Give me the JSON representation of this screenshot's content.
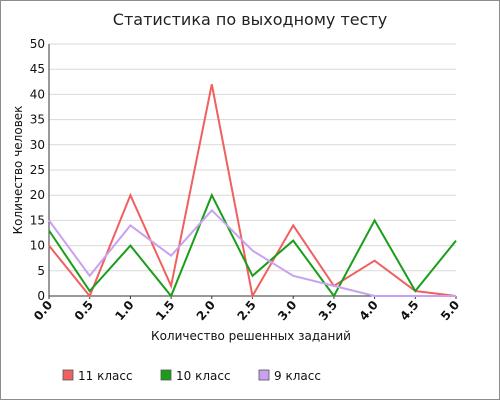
{
  "chart_data": {
    "type": "line",
    "title": "Статистика по выходному тесту",
    "xlabel": "Количество решенных заданий",
    "ylabel": "Количество человек",
    "x": [
      0.0,
      0.5,
      1.0,
      1.5,
      2.0,
      2.5,
      3.0,
      3.5,
      4.0,
      4.5,
      5.0
    ],
    "x_tick_labels": [
      "0.0",
      "0.5",
      "1.0",
      "1.5",
      "2.0",
      "2.5",
      "3.0",
      "3.5",
      "4.0",
      "4.5",
      "5.0"
    ],
    "y_tick_labels": [
      "0",
      "5",
      "10",
      "15",
      "20",
      "25",
      "30",
      "35",
      "40",
      "45",
      "50"
    ],
    "xlim": [
      0,
      5
    ],
    "ylim": [
      0,
      50
    ],
    "grid": "horizontal",
    "legend_position": "bottom",
    "series": [
      {
        "name": "11 класс",
        "color": "#f06060",
        "values": [
          10,
          0,
          20,
          2,
          42,
          0,
          14,
          2,
          7,
          1,
          0
        ]
      },
      {
        "name": "10 класс",
        "color": "#1a9e1a",
        "values": [
          13,
          1,
          10,
          0,
          20,
          4,
          11,
          0,
          15,
          1,
          11
        ]
      },
      {
        "name": "9 класс",
        "color": "#c8a2f0",
        "values": [
          15,
          4,
          14,
          8,
          17,
          9,
          4,
          2,
          0,
          0,
          0
        ]
      }
    ]
  }
}
